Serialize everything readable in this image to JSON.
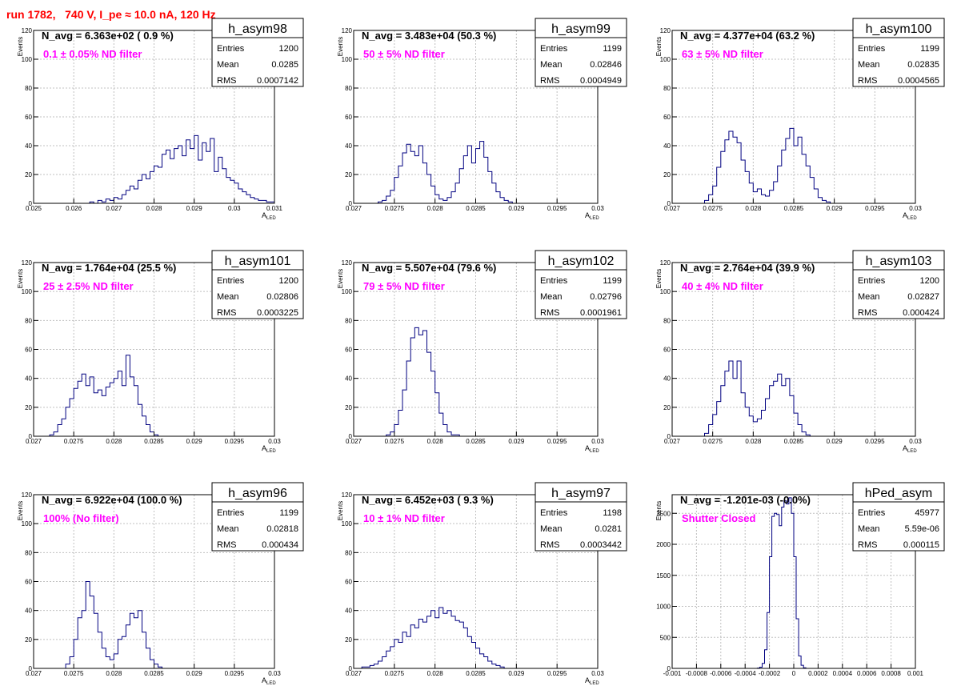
{
  "page_title": "run 1782,   740 V, I_pe ≈ 10.0 nA, 120 Hz",
  "colors": {
    "title": "#ff0000",
    "annotation": "#ff00ff",
    "histogram": "#000080",
    "grid": "#c0c0c0",
    "axis": "#000000"
  },
  "chart_data": [
    {
      "type": "histogram",
      "name": "h_asym98",
      "stats": {
        "entries": "1200",
        "mean": "0.0285",
        "rms": "0.0007142"
      },
      "navg_label": "N_avg = 6.363e+02 ( 0.9 %)",
      "filter_label": "0.1 ± 0.05% ND filter",
      "xlabel": "A_LED",
      "ylabel": "Events",
      "xlim": [
        0.025,
        0.031
      ],
      "ylim": [
        0,
        120
      ],
      "xticks": [
        0.025,
        0.026,
        0.027,
        0.028,
        0.029,
        0.03,
        0.031
      ],
      "xtick_labels": [
        "0.025",
        "0.026",
        "0.027",
        "0.028",
        "0.029",
        "0.03",
        "0.031"
      ],
      "yticks": [
        0,
        20,
        40,
        60,
        80,
        100,
        120
      ],
      "ytick_labels": [
        "0",
        "20",
        "40",
        "60",
        "80",
        "100",
        "120"
      ],
      "bin_lo": 0.0264,
      "bin_width": 0.0001,
      "counts": [
        1,
        0,
        2,
        1,
        3,
        2,
        4,
        3,
        6,
        9,
        12,
        10,
        16,
        20,
        17,
        22,
        26,
        25,
        34,
        37,
        31,
        38,
        40,
        33,
        44,
        38,
        47,
        30,
        42,
        36,
        45,
        22,
        32,
        24,
        18,
        16,
        14,
        10,
        8,
        6,
        4,
        3,
        2,
        2,
        1,
        1
      ]
    },
    {
      "type": "histogram",
      "name": "h_asym99",
      "stats": {
        "entries": "1199",
        "mean": "0.02846",
        "rms": "0.0004949"
      },
      "navg_label": "N_avg = 3.483e+04 (50.3 %)",
      "filter_label": "50 ± 5% ND filter",
      "xlabel": "A_LED",
      "ylabel": "Events",
      "xlim": [
        0.027,
        0.03
      ],
      "ylim": [
        0,
        120
      ],
      "xticks": [
        0.027,
        0.0275,
        0.028,
        0.0285,
        0.029,
        0.0295,
        0.03
      ],
      "xtick_labels": [
        "0.027",
        "0.0275",
        "0.028",
        "0.0285",
        "0.029",
        "0.0295",
        "0.03"
      ],
      "yticks": [
        0,
        20,
        40,
        60,
        80,
        100,
        120
      ],
      "ytick_labels": [
        "0",
        "20",
        "40",
        "60",
        "80",
        "100",
        "120"
      ],
      "bin_lo": 0.0273,
      "bin_width": 5e-05,
      "counts": [
        1,
        2,
        5,
        9,
        18,
        26,
        35,
        41,
        36,
        33,
        40,
        28,
        20,
        12,
        6,
        3,
        2,
        4,
        8,
        14,
        24,
        33,
        40,
        28,
        38,
        43,
        32,
        22,
        14,
        8,
        4,
        2,
        1
      ]
    },
    {
      "type": "histogram",
      "name": "h_asym100",
      "stats": {
        "entries": "1199",
        "mean": "0.02835",
        "rms": "0.0004565"
      },
      "navg_label": "N_avg = 4.377e+04 (63.2 %)",
      "filter_label": "63 ± 5% ND filter",
      "xlabel": "A_LED",
      "ylabel": "Events",
      "xlim": [
        0.027,
        0.03
      ],
      "ylim": [
        0,
        120
      ],
      "xticks": [
        0.027,
        0.0275,
        0.028,
        0.0285,
        0.029,
        0.0295,
        0.03
      ],
      "xtick_labels": [
        "0.027",
        "0.0275",
        "0.028",
        "0.0285",
        "0.029",
        "0.0295",
        "0.03"
      ],
      "yticks": [
        0,
        20,
        40,
        60,
        80,
        100,
        120
      ],
      "ytick_labels": [
        "0",
        "20",
        "40",
        "60",
        "80",
        "100",
        "120"
      ],
      "bin_lo": 0.0274,
      "bin_width": 5e-05,
      "counts": [
        2,
        6,
        12,
        25,
        36,
        44,
        50,
        46,
        42,
        30,
        22,
        14,
        8,
        10,
        6,
        5,
        9,
        15,
        26,
        37,
        45,
        52,
        40,
        46,
        34,
        26,
        18,
        10,
        4,
        2,
        1
      ]
    },
    {
      "type": "histogram",
      "name": "h_asym101",
      "stats": {
        "entries": "1200",
        "mean": "0.02806",
        "rms": "0.0003225"
      },
      "navg_label": "N_avg = 1.764e+04 (25.5 %)",
      "filter_label": "25 ± 2.5% ND filter",
      "xlabel": "A_LED",
      "ylabel": "Events",
      "xlim": [
        0.027,
        0.03
      ],
      "ylim": [
        0,
        120
      ],
      "xticks": [
        0.027,
        0.0275,
        0.028,
        0.0285,
        0.029,
        0.0295,
        0.03
      ],
      "xtick_labels": [
        "0.027",
        "0.0275",
        "0.028",
        "0.0285",
        "0.029",
        "0.0295",
        "0.03"
      ],
      "yticks": [
        0,
        20,
        40,
        60,
        80,
        100,
        120
      ],
      "ytick_labels": [
        "0",
        "20",
        "40",
        "60",
        "80",
        "100",
        "120"
      ],
      "bin_lo": 0.0272,
      "bin_width": 5e-05,
      "counts": [
        1,
        3,
        8,
        12,
        20,
        26,
        33,
        38,
        43,
        35,
        41,
        30,
        32,
        28,
        34,
        37,
        40,
        45,
        35,
        56,
        41,
        35,
        22,
        14,
        8,
        3,
        1
      ]
    },
    {
      "type": "histogram",
      "name": "h_asym102",
      "stats": {
        "entries": "1199",
        "mean": "0.02796",
        "rms": "0.0001961"
      },
      "navg_label": "N_avg = 5.507e+04 (79.6 %)",
      "filter_label": "79 ± 5% ND filter",
      "xlabel": "A_LED",
      "ylabel": "Events",
      "xlim": [
        0.027,
        0.03
      ],
      "ylim": [
        0,
        120
      ],
      "xticks": [
        0.027,
        0.0275,
        0.028,
        0.0285,
        0.029,
        0.0295,
        0.03
      ],
      "xtick_labels": [
        "0.027",
        "0.0275",
        "0.028",
        "0.0285",
        "0.029",
        "0.0295",
        "0.03"
      ],
      "yticks": [
        0,
        20,
        40,
        60,
        80,
        100,
        120
      ],
      "ytick_labels": [
        "0",
        "20",
        "40",
        "60",
        "80",
        "100",
        "120"
      ],
      "bin_lo": 0.0274,
      "bin_width": 5e-05,
      "counts": [
        1,
        3,
        8,
        18,
        32,
        52,
        68,
        75,
        70,
        73,
        58,
        45,
        30,
        16,
        8,
        3,
        1,
        1
      ]
    },
    {
      "type": "histogram",
      "name": "h_asym103",
      "stats": {
        "entries": "1200",
        "mean": "0.02827",
        "rms": "0.000424"
      },
      "navg_label": "N_avg = 2.764e+04 (39.9 %)",
      "filter_label": "40 ± 4% ND filter",
      "xlabel": "A_LED",
      "ylabel": "Events",
      "xlim": [
        0.027,
        0.03
      ],
      "ylim": [
        0,
        120
      ],
      "xticks": [
        0.027,
        0.0275,
        0.028,
        0.0285,
        0.029,
        0.0295,
        0.03
      ],
      "xtick_labels": [
        "0.027",
        "0.0275",
        "0.028",
        "0.0285",
        "0.029",
        "0.0295",
        "0.03"
      ],
      "yticks": [
        0,
        20,
        40,
        60,
        80,
        100,
        120
      ],
      "ytick_labels": [
        "0",
        "20",
        "40",
        "60",
        "80",
        "100",
        "120"
      ],
      "bin_lo": 0.0274,
      "bin_width": 5e-05,
      "counts": [
        2,
        8,
        15,
        24,
        35,
        45,
        52,
        40,
        52,
        30,
        20,
        14,
        10,
        12,
        18,
        26,
        35,
        38,
        43,
        35,
        40,
        28,
        16,
        8,
        3,
        1
      ]
    },
    {
      "type": "histogram",
      "name": "h_asym96",
      "stats": {
        "entries": "1199",
        "mean": "0.02818",
        "rms": "0.000434"
      },
      "navg_label": "N_avg = 6.922e+04 (100.0 %)",
      "filter_label": "100% (No filter)",
      "xlabel": "A_LED",
      "ylabel": "Events",
      "xlim": [
        0.027,
        0.03
      ],
      "ylim": [
        0,
        120
      ],
      "xticks": [
        0.027,
        0.0275,
        0.028,
        0.0285,
        0.029,
        0.0295,
        0.03
      ],
      "xtick_labels": [
        "0.027",
        "0.0275",
        "0.028",
        "0.0285",
        "0.029",
        "0.0295",
        "0.03"
      ],
      "yticks": [
        0,
        20,
        40,
        60,
        80,
        100,
        120
      ],
      "ytick_labels": [
        "0",
        "20",
        "40",
        "60",
        "80",
        "100",
        "120"
      ],
      "bin_lo": 0.0274,
      "bin_width": 5e-05,
      "counts": [
        3,
        8,
        20,
        35,
        40,
        60,
        50,
        38,
        25,
        14,
        8,
        6,
        10,
        20,
        22,
        30,
        38,
        35,
        40,
        25,
        14,
        6,
        3,
        1
      ]
    },
    {
      "type": "histogram",
      "name": "h_asym97",
      "stats": {
        "entries": "1198",
        "mean": "0.0281",
        "rms": "0.0003442"
      },
      "navg_label": "N_avg = 6.452e+03 ( 9.3 %)",
      "filter_label": "10 ± 1% ND filter",
      "xlabel": "A_LED",
      "ylabel": "Events",
      "xlim": [
        0.027,
        0.03
      ],
      "ylim": [
        0,
        120
      ],
      "xticks": [
        0.027,
        0.0275,
        0.028,
        0.0285,
        0.029,
        0.0295,
        0.03
      ],
      "xtick_labels": [
        "0.027",
        "0.0275",
        "0.028",
        "0.0285",
        "0.029",
        "0.0295",
        "0.03"
      ],
      "yticks": [
        0,
        20,
        40,
        60,
        80,
        100,
        120
      ],
      "ytick_labels": [
        "0",
        "20",
        "40",
        "60",
        "80",
        "100",
        "120"
      ],
      "bin_lo": 0.0271,
      "bin_width": 5e-05,
      "counts": [
        1,
        1,
        2,
        3,
        5,
        8,
        12,
        15,
        20,
        18,
        25,
        22,
        30,
        28,
        34,
        32,
        36,
        40,
        35,
        42,
        38,
        40,
        36,
        33,
        32,
        28,
        22,
        18,
        14,
        10,
        8,
        5,
        3,
        2,
        1
      ]
    },
    {
      "type": "histogram",
      "name": "hPed_asym",
      "stats": {
        "entries": "45977",
        "mean": "5.59e-06",
        "rms": "0.000115"
      },
      "navg_label": "N_avg = -1.201e-03 (-0.0%)",
      "filter_label": "Shutter Closed",
      "xlabel": "",
      "ylabel": "Events",
      "xlim": [
        -0.001,
        0.001
      ],
      "ylim": [
        0,
        2800
      ],
      "xticks": [
        -0.001,
        -0.0008,
        -0.0006,
        -0.0004,
        -0.0002,
        0,
        0.0002,
        0.0004,
        0.0006,
        0.0008,
        0.001
      ],
      "xtick_labels": [
        "-0.001",
        "-0.0008",
        "-0.0006",
        "-0.0004",
        "-0.0002",
        "0",
        "0.0002",
        "0.0004",
        "0.0006",
        "0.0008",
        "0.001"
      ],
      "yticks": [
        0,
        500,
        1000,
        1500,
        2000,
        2500
      ],
      "ytick_labels": [
        "0",
        "500",
        "1000",
        "1500",
        "2000",
        "2500"
      ],
      "bin_lo": -0.0003,
      "bin_width": 2e-05,
      "counts": [
        5,
        20,
        80,
        300,
        900,
        1800,
        2450,
        2500,
        2480,
        2300,
        2600,
        2700,
        2650,
        2750,
        2500,
        1800,
        800,
        200,
        50,
        10
      ]
    }
  ]
}
